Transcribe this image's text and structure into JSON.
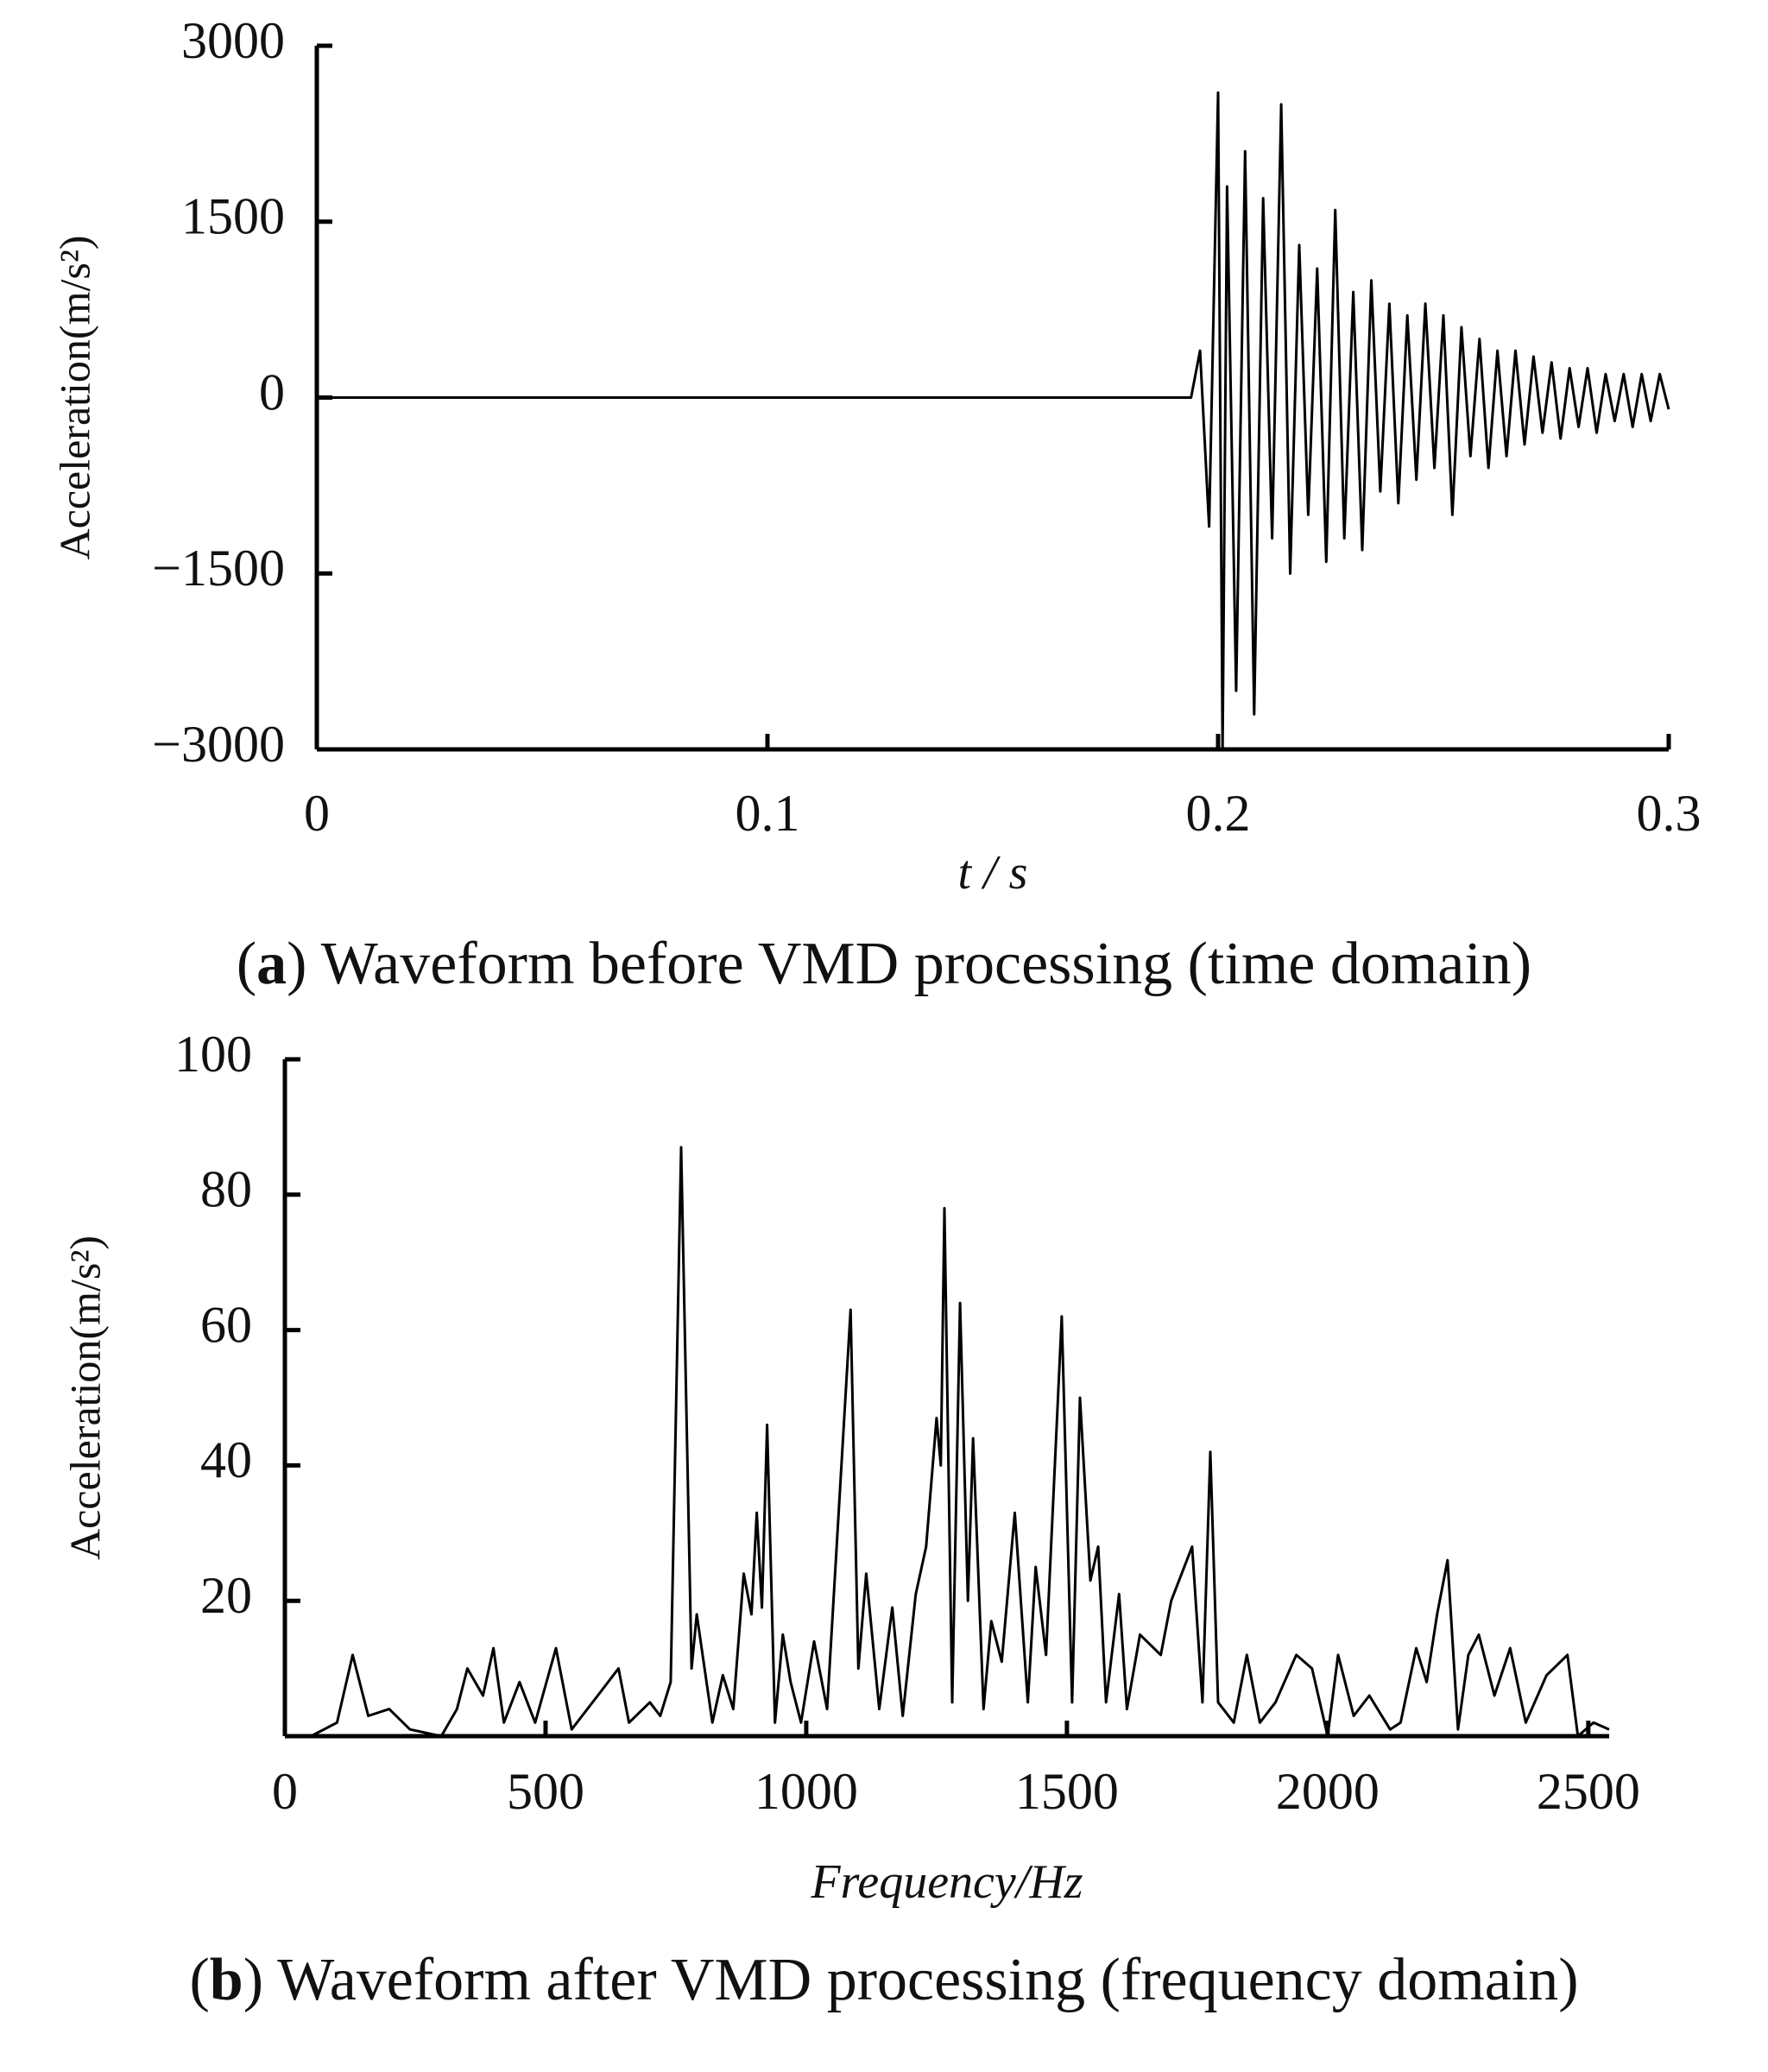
{
  "chart_data": [
    {
      "type": "line",
      "caption": [
        "(",
        "a",
        ") Waveform before VMD processing (time domain)"
      ],
      "x_label": "t / s",
      "y_label": "Acceleration(m/s²)",
      "xlim": [
        0,
        0.3
      ],
      "xticks": [
        0,
        0.1,
        0.2,
        0.3
      ],
      "ylim": [
        -3000,
        3000
      ],
      "yticks": [
        {
          "value": -3000,
          "label": "−3000"
        },
        {
          "value": -1500,
          "label": "−1500"
        },
        0,
        1500,
        3000
      ],
      "color": "#000000",
      "x": [
        0,
        0.194,
        0.196,
        0.198,
        0.2,
        0.201,
        0.202,
        0.204,
        0.206,
        0.208,
        0.21,
        0.212,
        0.214,
        0.216,
        0.218,
        0.22,
        0.222,
        0.224,
        0.226,
        0.228,
        0.23,
        0.232,
        0.234,
        0.236,
        0.238,
        0.24,
        0.242,
        0.244,
        0.246,
        0.248,
        0.25,
        0.252,
        0.254,
        0.256,
        0.258,
        0.26,
        0.262,
        0.264,
        0.266,
        0.268,
        0.27,
        0.272,
        0.274,
        0.276,
        0.278,
        0.28,
        0.282,
        0.284,
        0.286,
        0.288,
        0.29,
        0.292,
        0.294,
        0.296,
        0.298,
        0.3
      ],
      "values": [
        0,
        0,
        400,
        -1100,
        2600,
        -3000,
        1800,
        -2500,
        2100,
        -2700,
        1700,
        -1200,
        2500,
        -1500,
        1300,
        -1000,
        1100,
        -1400,
        1600,
        -1200,
        900,
        -1300,
        1000,
        -800,
        800,
        -900,
        700,
        -700,
        800,
        -600,
        700,
        -1000,
        600,
        -500,
        500,
        -600,
        400,
        -500,
        400,
        -400,
        350,
        -300,
        300,
        -350,
        250,
        -250,
        250,
        -300,
        200,
        -200,
        200,
        -250,
        200,
        -200,
        200,
        -100
      ]
    },
    {
      "type": "line",
      "caption": [
        "(",
        "b",
        ") Waveform after VMD processing (frequency domain)"
      ],
      "x_label": "Frequency/Hz",
      "y_label": "Acceleration(m/s²)",
      "xlim": [
        0,
        2540
      ],
      "xticks": [
        0,
        500,
        1000,
        1500,
        2000,
        2500
      ],
      "ylim": [
        0,
        100
      ],
      "yticks": [
        20,
        40,
        60,
        80,
        100
      ],
      "color": "#000000",
      "x": [
        50,
        100,
        130,
        160,
        200,
        240,
        300,
        330,
        350,
        380,
        400,
        420,
        450,
        480,
        520,
        550,
        600,
        640,
        660,
        700,
        720,
        740,
        760,
        780,
        790,
        820,
        840,
        860,
        880,
        895,
        905,
        915,
        925,
        940,
        955,
        970,
        990,
        1015,
        1040,
        1085,
        1100,
        1115,
        1140,
        1165,
        1185,
        1210,
        1230,
        1250,
        1258,
        1265,
        1280,
        1295,
        1310,
        1320,
        1340,
        1355,
        1375,
        1400,
        1425,
        1440,
        1460,
        1490,
        1510,
        1525,
        1545,
        1560,
        1575,
        1600,
        1615,
        1640,
        1680,
        1700,
        1740,
        1760,
        1775,
        1790,
        1820,
        1845,
        1870,
        1900,
        1940,
        1970,
        2000,
        2020,
        2050,
        2080,
        2120,
        2140,
        2170,
        2190,
        2210,
        2230,
        2250,
        2270,
        2290,
        2320,
        2350,
        2380,
        2420,
        2460,
        2480,
        2510,
        2540
      ],
      "values": [
        0,
        2,
        12,
        3,
        4,
        1,
        0,
        4,
        10,
        6,
        13,
        2,
        8,
        2,
        13,
        1,
        6,
        10,
        2,
        5,
        3,
        8,
        87,
        10,
        18,
        2,
        9,
        4,
        24,
        18,
        33,
        19,
        46,
        2,
        15,
        8,
        2,
        14,
        4,
        63,
        10,
        24,
        4,
        19,
        3,
        21,
        28,
        47,
        40,
        78,
        5,
        64,
        20,
        44,
        4,
        17,
        11,
        33,
        5,
        25,
        12,
        62,
        5,
        50,
        23,
        28,
        5,
        21,
        4,
        15,
        12,
        20,
        28,
        5,
        42,
        5,
        2,
        12,
        2,
        5,
        12,
        10,
        0,
        12,
        3,
        6,
        1,
        2,
        13,
        8,
        18,
        26,
        1,
        12,
        15,
        6,
        13,
        2,
        9,
        12,
        0,
        2,
        1
      ]
    }
  ]
}
